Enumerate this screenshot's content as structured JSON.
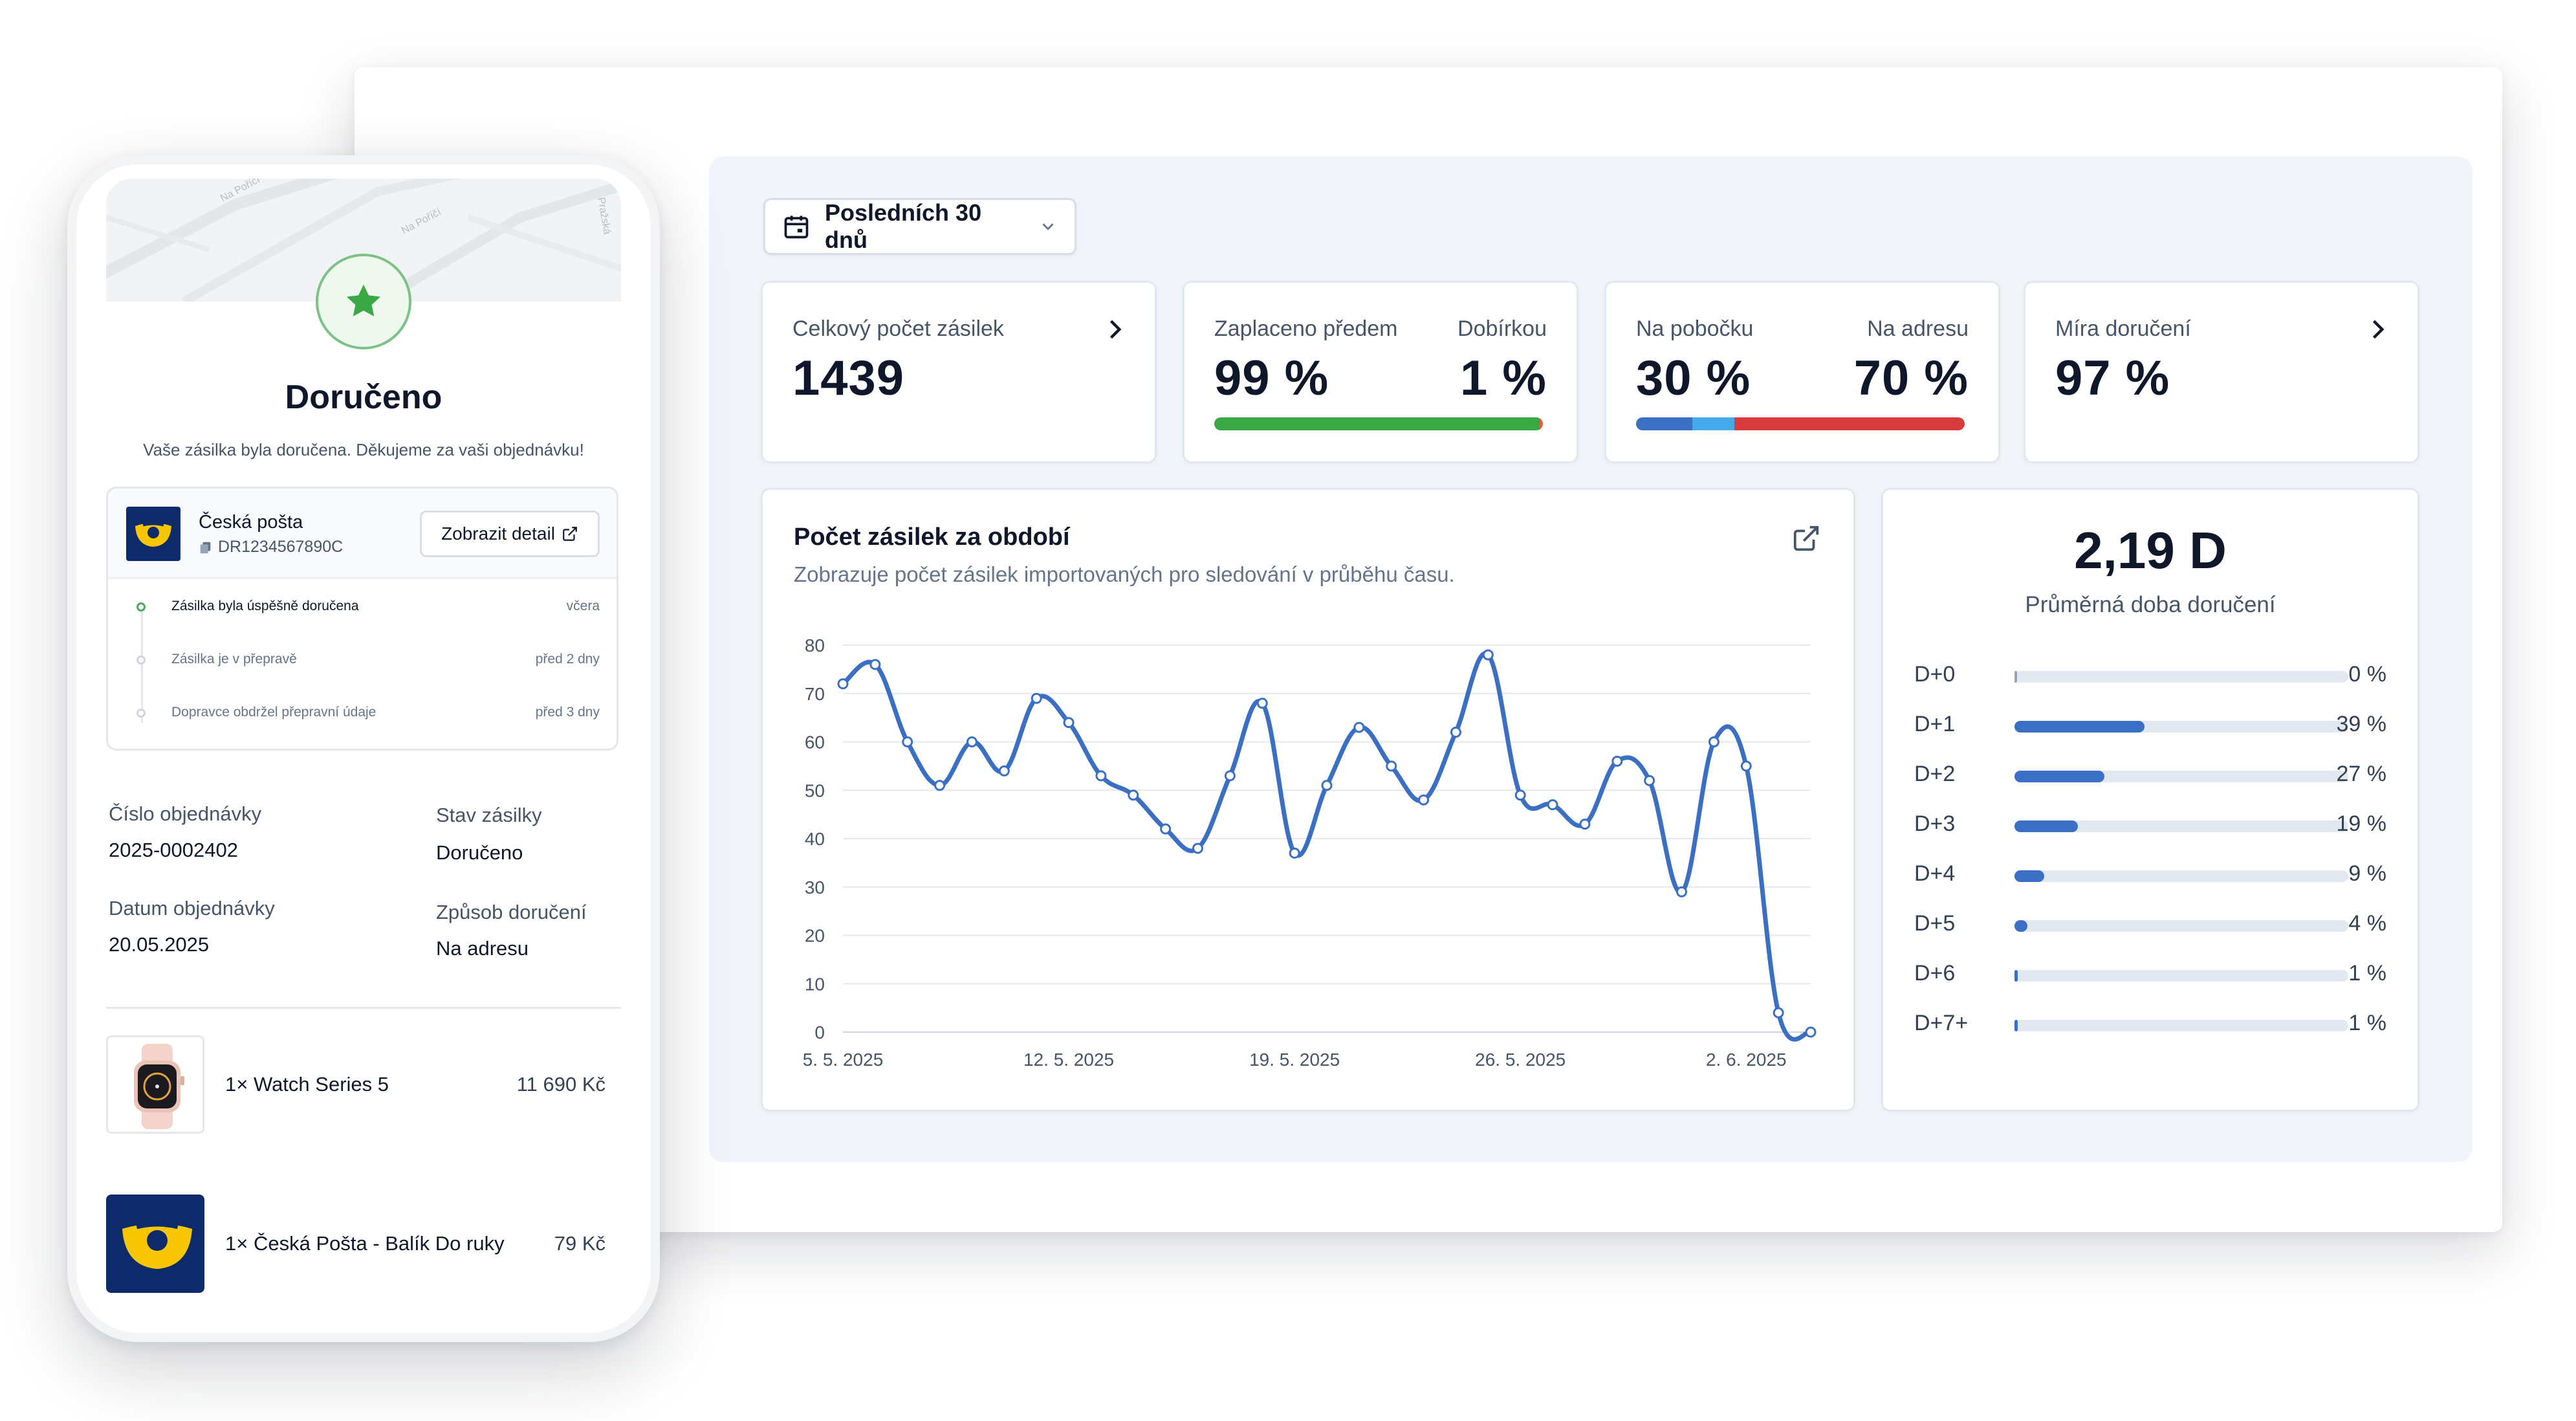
{
  "dashboard": {
    "period": "Posledních 30 dnů",
    "stats": {
      "total": {
        "label": "Celkový počet zásilek",
        "value": "1439"
      },
      "payment": {
        "left_label": "Zaplaceno předem",
        "left_value": "99 %",
        "right_label": "Dobírkou",
        "right_value": "1 %",
        "prepaid_fraction": 0.99,
        "color_prepaid": "#3aa845",
        "color_cod": "#e25c3c"
      },
      "delivery_type": {
        "left_label": "Na pobočku",
        "left_value": "30 %",
        "right_label": "Na adresu",
        "right_value": "70 %",
        "branch_fraction": 0.3,
        "color_branch_a": "#3a6fc4",
        "color_branch_b": "#46a9ea",
        "color_address": "#d83b3b"
      },
      "delivery_rate": {
        "label": "Míra doručení",
        "value": "97 %"
      }
    },
    "chart_card": {
      "title": "Počet zásilek za období",
      "subtitle": "Zobrazuje počet zásilek importovaných pro sledování v průběhu času."
    },
    "avg_card": {
      "value": "2,19 D",
      "label": "Průměrná doba doručení",
      "rows": [
        {
          "label": "D+0",
          "percent": "0 %",
          "fraction": 0.0
        },
        {
          "label": "D+1",
          "percent": "39 %",
          "fraction": 0.39
        },
        {
          "label": "D+2",
          "percent": "27 %",
          "fraction": 0.27
        },
        {
          "label": "D+3",
          "percent": "19 %",
          "fraction": 0.19
        },
        {
          "label": "D+4",
          "percent": "9 %",
          "fraction": 0.09
        },
        {
          "label": "D+5",
          "percent": "4 %",
          "fraction": 0.04
        },
        {
          "label": "D+6",
          "percent": "1 %",
          "fraction": 0.01
        },
        {
          "label": "D+7+",
          "percent": "1 %",
          "fraction": 0.01
        }
      ],
      "accent": "#3a6fc4"
    }
  },
  "chart_data": {
    "type": "line",
    "x_tick_labels": [
      "5. 5. 2025",
      "12. 5. 2025",
      "19. 5. 2025",
      "26. 5. 2025",
      "2. 6. 2025"
    ],
    "x": [
      "5. 5.",
      "6. 5.",
      "7. 5.",
      "8. 5.",
      "9. 5.",
      "10. 5.",
      "11. 5.",
      "12. 5.",
      "13. 5.",
      "14. 5.",
      "15. 5.",
      "16. 5.",
      "17. 5.",
      "18. 5.",
      "19. 5.",
      "20. 5.",
      "21. 5.",
      "22. 5.",
      "23. 5.",
      "24. 5.",
      "25. 5.",
      "26. 5.",
      "27. 5.",
      "28. 5.",
      "29. 5.",
      "30. 5.",
      "31. 5.",
      "1. 6.",
      "2. 6.",
      "3. 6.",
      "4. 6."
    ],
    "series": [
      {
        "values": [
          72,
          76,
          60,
          51,
          60,
          54,
          69,
          64,
          53,
          49,
          42,
          38,
          53,
          68,
          37,
          51,
          63,
          55,
          48,
          62,
          78,
          49,
          47,
          43,
          56,
          52,
          29,
          60,
          55,
          4,
          0
        ]
      }
    ],
    "y_ticks": [
      0,
      10,
      20,
      30,
      40,
      50,
      60,
      70,
      80
    ],
    "ylim": [
      0,
      80
    ],
    "grid": true,
    "line_color": "#3a6fc4"
  },
  "phone": {
    "status_title": "Doručeno",
    "status_message": "Vaše zásilka byla doručena. Děkujeme za vaši objednávku!",
    "map_labels": [
      "Na Poříčí",
      "Na Poříčí",
      "Pražská"
    ],
    "carrier": {
      "name": "Česká pošta",
      "tracking": "DR1234567890C",
      "detail_button": "Zobrazit detail"
    },
    "timeline": [
      {
        "text": "Zásilka byla úspěšně doručena",
        "time": "včera",
        "done": true
      },
      {
        "text": "Zásilka je v přepravě",
        "time": "před 2 dny",
        "done": false
      },
      {
        "text": "Dopravce obdržel přepravní údaje",
        "time": "před 3 dny",
        "done": false
      }
    ],
    "info": {
      "order_number_label": "Číslo objednávky",
      "order_number": "2025-0002402",
      "status_label": "Stav zásilky",
      "status": "Doručeno",
      "date_label": "Datum objednávky",
      "date": "20.05.2025",
      "method_label": "Způsob doručení",
      "method": "Na adresu"
    },
    "items": [
      {
        "name": "1× Watch Series 5",
        "price": "11 690 Kč"
      },
      {
        "name": "1× Česká Pošta - Balík Do ruky",
        "price": "79 Kč"
      }
    ],
    "brand_yellow": "#f7c600",
    "brand_blue": "#0d2a6b"
  }
}
